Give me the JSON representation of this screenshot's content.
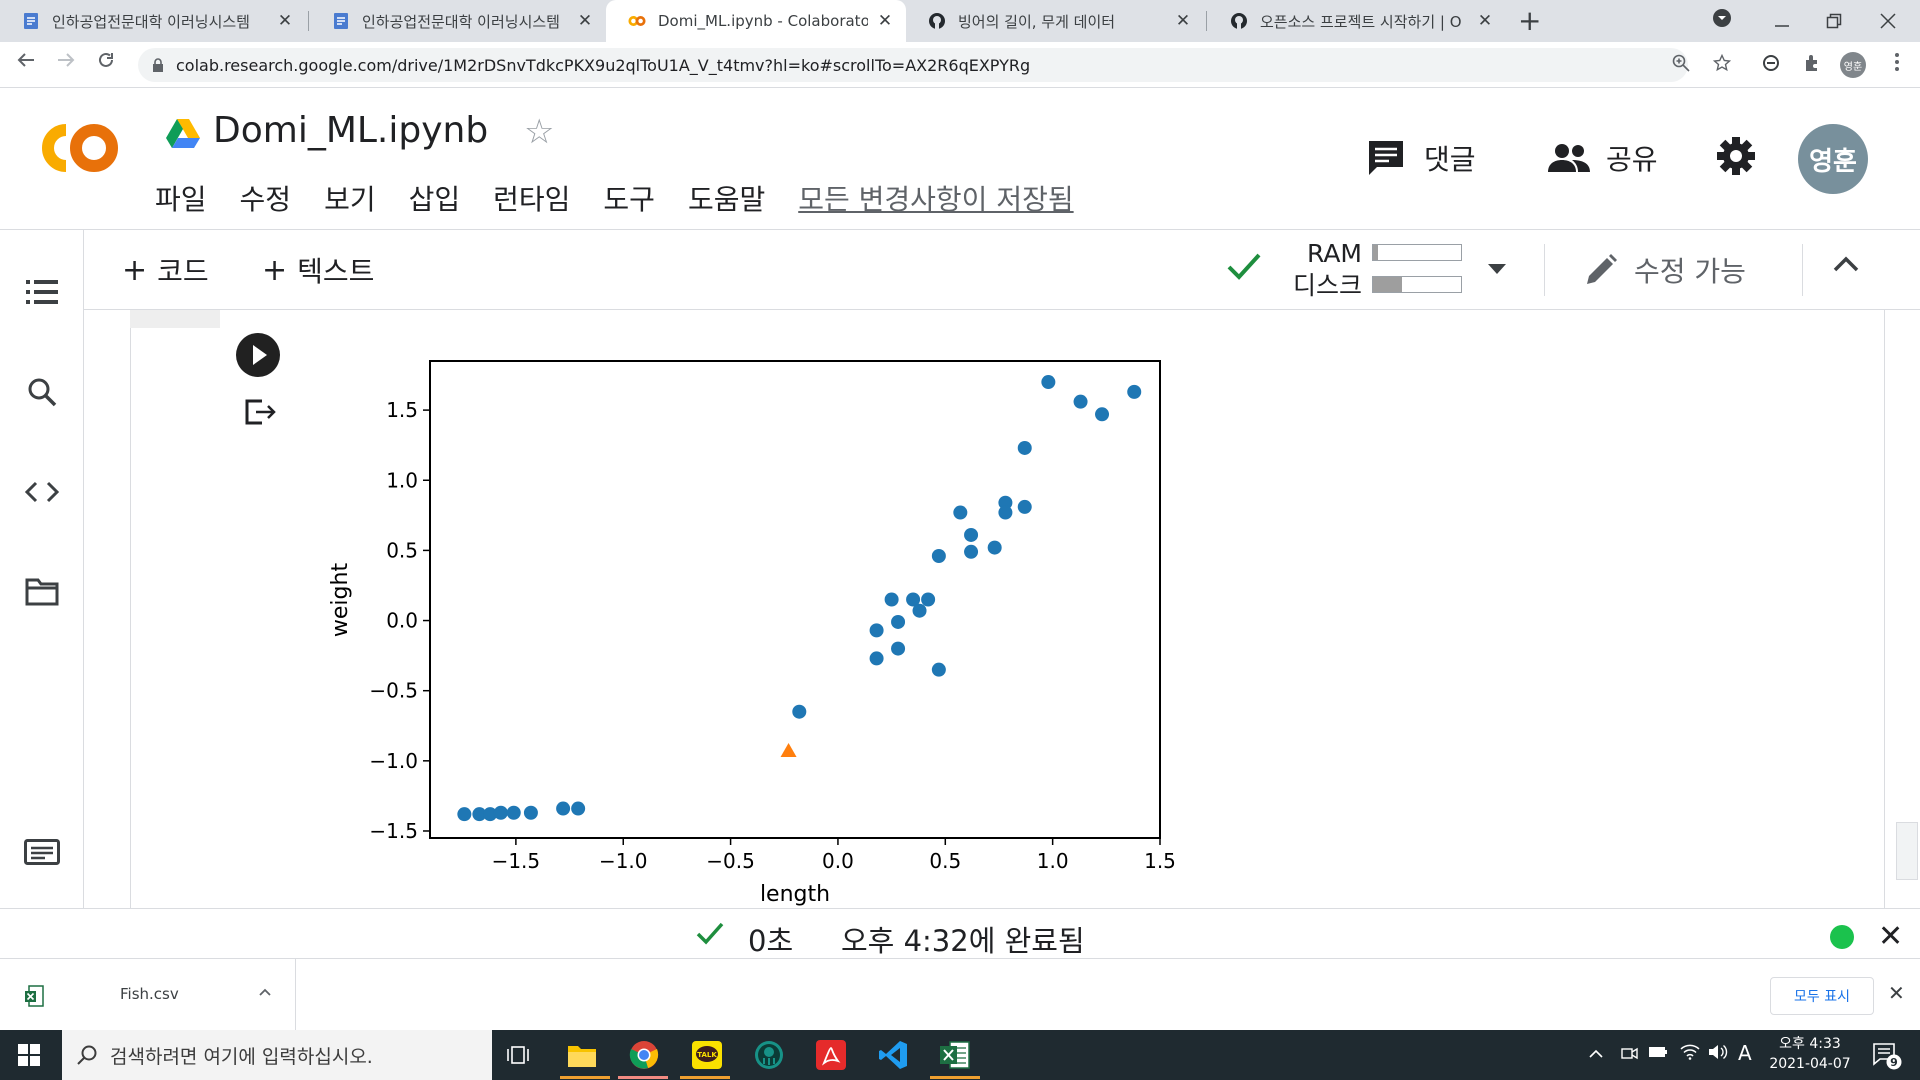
{
  "browser": {
    "tabs": [
      {
        "title": "인하공업전문대학 이러닝시스템",
        "icon": "document-icon",
        "active": false
      },
      {
        "title": "인하공업전문대학 이러닝시스템",
        "icon": "document-icon",
        "active": false
      },
      {
        "title": "Domi_ML.ipynb - Colaboratory",
        "icon": "colab-icon",
        "active": true
      },
      {
        "title": "빙어의 길이, 무게 데이터",
        "icon": "github-icon",
        "active": false
      },
      {
        "title": "오픈소스 프로젝트 시작하기 | O",
        "icon": "github-icon",
        "active": false
      }
    ],
    "close_glyph": "✕",
    "new_tab_glyph": "+",
    "url": "colab.research.google.com/drive/1M2rDSnvTdkcPKX9u2qlToU1A_V_t4tmv?hl=ko#scrollTo=AX2R6qEXPYRg",
    "profile_initials": "영훈"
  },
  "colab": {
    "logo_text": "CO",
    "notebook_title": "Domi_ML.ipynb",
    "menu": [
      "파일",
      "수정",
      "보기",
      "삽입",
      "런타임",
      "도구",
      "도움말"
    ],
    "saved_status": "모든 변경사항이 저장됨",
    "comment_label": "댓글",
    "share_label": "공유",
    "avatar_initials": "영훈",
    "toolbar": {
      "add_code": "코드",
      "add_text": "텍스트",
      "ram_label": "RAM",
      "disk_label": "디스크",
      "ram_usage": 0.06,
      "disk_usage": 0.33,
      "edit_mode": "수정 가능"
    }
  },
  "chart_data": {
    "type": "scatter",
    "xlabel": "length",
    "ylabel": "weight",
    "xlim": [
      -1.9,
      1.5
    ],
    "ylim": [
      -1.55,
      1.85
    ],
    "xticks": [
      "−1.5",
      "−1.0",
      "−0.5",
      "0.0",
      "0.5",
      "1.0",
      "1.5"
    ],
    "yticks": [
      "−1.5",
      "−1.0",
      "−0.5",
      "0.0",
      "0.5",
      "1.0",
      "1.5"
    ],
    "grid": false,
    "series": [
      {
        "marker": "circle",
        "color": "#1f77b4",
        "points": [
          [
            -1.74,
            -1.38
          ],
          [
            -1.67,
            -1.38
          ],
          [
            -1.62,
            -1.38
          ],
          [
            -1.57,
            -1.37
          ],
          [
            -1.51,
            -1.37
          ],
          [
            -1.43,
            -1.37
          ],
          [
            -1.28,
            -1.34
          ],
          [
            -1.21,
            -1.34
          ],
          [
            -0.18,
            -0.65
          ],
          [
            0.18,
            -0.07
          ],
          [
            0.18,
            -0.27
          ],
          [
            0.25,
            0.15
          ],
          [
            0.28,
            -0.01
          ],
          [
            0.28,
            -0.2
          ],
          [
            0.35,
            0.15
          ],
          [
            0.38,
            0.07
          ],
          [
            0.42,
            0.15
          ],
          [
            0.47,
            -0.35
          ],
          [
            0.47,
            0.46
          ],
          [
            0.57,
            0.77
          ],
          [
            0.62,
            0.61
          ],
          [
            0.62,
            0.49
          ],
          [
            0.73,
            0.52
          ],
          [
            0.78,
            0.84
          ],
          [
            0.78,
            0.77
          ],
          [
            0.87,
            1.23
          ],
          [
            0.87,
            0.81
          ],
          [
            0.98,
            1.7
          ],
          [
            1.13,
            1.56
          ],
          [
            1.23,
            1.47
          ],
          [
            1.38,
            1.63
          ]
        ]
      },
      {
        "marker": "triangle",
        "color": "#ff7f0e",
        "points": [
          [
            -0.23,
            -0.93
          ]
        ]
      }
    ]
  },
  "status": {
    "elapsed": "0초",
    "completed": "오후 4:32에 완료됨"
  },
  "downloads": {
    "file_name": "Fish.csv",
    "show_all": "모두 표시"
  },
  "taskbar": {
    "search_placeholder": "검색하려면 여기에 입력하십시오.",
    "clock_time": "오후 4:33",
    "clock_date": "2021-04-07",
    "ime": "A",
    "notification_count": "9"
  }
}
